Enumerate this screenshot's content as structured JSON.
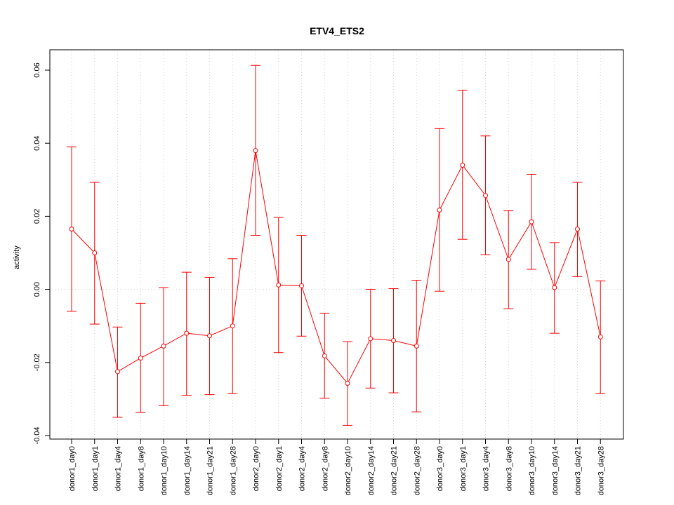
{
  "chart_data": {
    "type": "line",
    "title": "ETV4_ETS2",
    "xlabel": "",
    "ylabel": "activity",
    "ylim": [
      -0.04,
      0.065
    ],
    "yticks": [
      -0.04,
      -0.02,
      0.0,
      0.02,
      0.04,
      0.06
    ],
    "ytick_labels": [
      "-0.04",
      "-0.02",
      "0.00",
      "0.02",
      "0.04",
      "0.06"
    ],
    "grid": true,
    "color": "#ff0000",
    "categories": [
      "donor1_day0",
      "donor1_day1",
      "donor1_day4",
      "donor1_day8",
      "donor1_day10",
      "donor1_day14",
      "donor1_day21",
      "donor1_day28",
      "donor2_day0",
      "donor2_day1",
      "donor2_day4",
      "donor2_day8",
      "donor2_day10",
      "donor2_day14",
      "donor2_day21",
      "donor2_day28",
      "donor3_day0",
      "donor3_day1",
      "donor3_day4",
      "donor3_day8",
      "donor3_day10",
      "donor3_day14",
      "donor3_day21",
      "donor3_day28"
    ],
    "values": [
      0.0165,
      0.01,
      -0.0225,
      -0.0188,
      -0.0155,
      -0.012,
      -0.0127,
      -0.01,
      0.038,
      0.0012,
      0.001,
      -0.0182,
      -0.0257,
      -0.0135,
      -0.014,
      -0.0155,
      0.0217,
      0.034,
      0.0257,
      0.0082,
      0.0185,
      0.0005,
      0.0165,
      -0.013
    ],
    "error_upper": [
      0.039,
      0.0293,
      -0.0103,
      -0.0038,
      0.0005,
      0.0047,
      0.0033,
      0.0084,
      0.0613,
      0.0197,
      0.0148,
      -0.0065,
      -0.0143,
      0.0,
      0.0002,
      0.0025,
      0.044,
      0.0545,
      0.042,
      0.0215,
      0.0315,
      0.0128,
      0.0293,
      0.0023
    ],
    "error_lower": [
      -0.006,
      -0.0095,
      -0.035,
      -0.0337,
      -0.0318,
      -0.029,
      -0.0288,
      -0.0285,
      0.0148,
      -0.0173,
      -0.0128,
      -0.0298,
      -0.0372,
      -0.027,
      -0.0283,
      -0.0335,
      -0.0005,
      0.0137,
      0.0095,
      -0.0053,
      0.0055,
      -0.012,
      0.0035,
      -0.0285
    ]
  }
}
